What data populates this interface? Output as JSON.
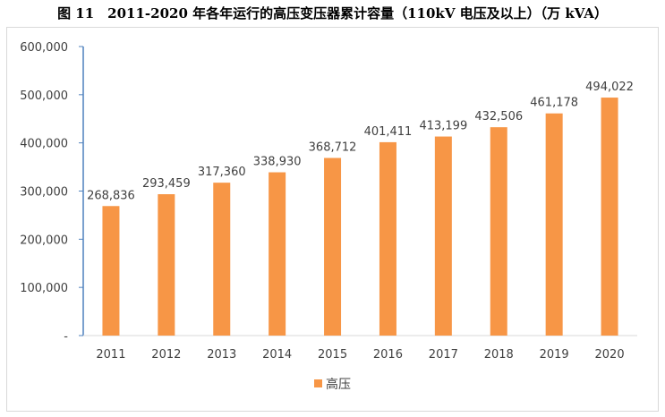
{
  "figure": {
    "title": "图 11　2011-2020 年各年运行的高压变压器累计容量（110kV 电压及以上）（万 kVA）"
  },
  "chart_data": {
    "type": "bar",
    "categories": [
      "2011",
      "2012",
      "2013",
      "2014",
      "2015",
      "2016",
      "2017",
      "2018",
      "2019",
      "2020"
    ],
    "series": [
      {
        "name": "高压",
        "color": "#f79646",
        "values": [
          268836,
          293459,
          317360,
          338930,
          368712,
          401411,
          413199,
          432506,
          461178,
          494022
        ],
        "labels": [
          "268,836",
          "293,459",
          "317,360",
          "338,930",
          "368,712",
          "401,411",
          "413,199",
          "432,506",
          "461,178",
          "494,022"
        ]
      }
    ],
    "ylim": [
      0,
      600000
    ],
    "yticks": [
      0,
      100000,
      200000,
      300000,
      400000,
      500000,
      600000
    ],
    "ytick_labels": [
      "-",
      "100,000",
      "200,000",
      "300,000",
      "400,000",
      "500,000",
      "600,000"
    ],
    "grid": false,
    "legend_position": "bottom"
  }
}
